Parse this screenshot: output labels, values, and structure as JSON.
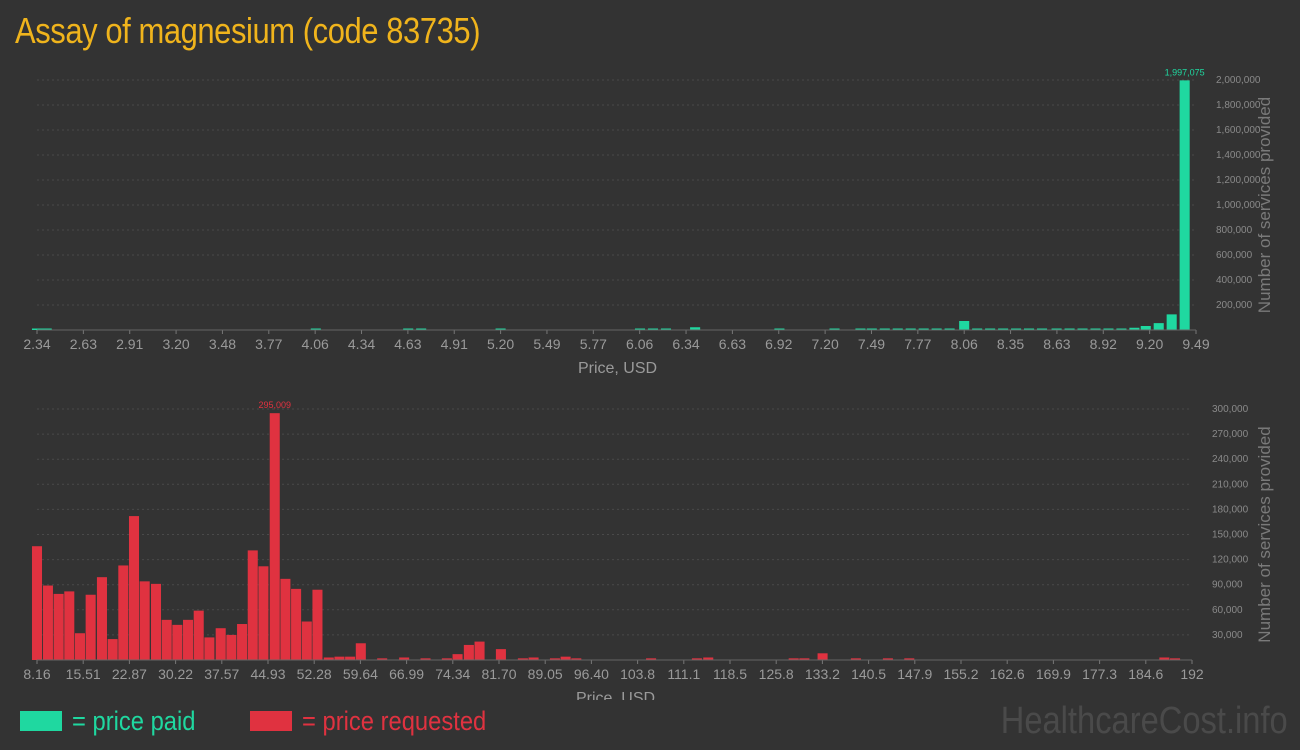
{
  "title": "Assay of magnesium (code 83735)",
  "legend": {
    "paid_label": "= price paid",
    "requested_label": "= price requested"
  },
  "watermark": "HealthcareCost.info",
  "colors": {
    "paid": "#1fd8a0",
    "requested": "#e03240",
    "title": "#f0b41c"
  },
  "chart_data": [
    {
      "type": "bar",
      "name": "price-paid",
      "xlabel": "Price, USD",
      "ylabel": "Number of services provided",
      "ylim": [
        0,
        2000000
      ],
      "yticks": [
        "200,000",
        "400,000",
        "600,000",
        "800,000",
        "1,000,000",
        "1,200,000",
        "1,400,000",
        "1,600,000",
        "1,800,000",
        "2,000,000"
      ],
      "ytick_values": [
        200000,
        400000,
        600000,
        800000,
        1000000,
        1200000,
        1400000,
        1600000,
        1800000,
        2000000
      ],
      "xticks": [
        "2.34",
        "2.63",
        "2.91",
        "3.20",
        "3.48",
        "3.77",
        "4.06",
        "4.34",
        "4.63",
        "4.91",
        "5.20",
        "5.49",
        "5.77",
        "6.06",
        "6.34",
        "6.63",
        "6.92",
        "7.20",
        "7.49",
        "7.77",
        "8.06",
        "8.35",
        "8.63",
        "8.92",
        "9.20",
        "9.49"
      ],
      "xrange": [
        2.34,
        9.49
      ],
      "grid": true,
      "peak_label": "1,997,075",
      "bars": [
        [
          2.34,
          8000
        ],
        [
          2.4,
          3000
        ],
        [
          4.06,
          5000
        ],
        [
          4.63,
          6000
        ],
        [
          4.71,
          5000
        ],
        [
          5.2,
          4000
        ],
        [
          6.06,
          3000
        ],
        [
          6.14,
          6000
        ],
        [
          6.22,
          4000
        ],
        [
          6.4,
          22000
        ],
        [
          6.92,
          4000
        ],
        [
          7.26,
          5000
        ],
        [
          7.42,
          4000
        ],
        [
          7.49,
          5000
        ],
        [
          7.57,
          4000
        ],
        [
          7.65,
          5000
        ],
        [
          7.73,
          4000
        ],
        [
          7.81,
          5000
        ],
        [
          7.89,
          4000
        ],
        [
          7.97,
          5000
        ],
        [
          8.06,
          72000
        ],
        [
          8.14,
          4000
        ],
        [
          8.22,
          5000
        ],
        [
          8.3,
          4000
        ],
        [
          8.38,
          5000
        ],
        [
          8.46,
          4000
        ],
        [
          8.54,
          5000
        ],
        [
          8.63,
          9000
        ],
        [
          8.71,
          5000
        ],
        [
          8.79,
          4000
        ],
        [
          8.87,
          5000
        ],
        [
          8.95,
          9000
        ],
        [
          9.03,
          12000
        ],
        [
          9.11,
          18000
        ],
        [
          9.18,
          32000
        ],
        [
          9.26,
          55000
        ],
        [
          9.34,
          125000
        ],
        [
          9.42,
          1997075
        ]
      ]
    },
    {
      "type": "bar",
      "name": "price-requested",
      "xlabel": "Price, USD",
      "ylabel": "Number of services provided",
      "ylim": [
        0,
        300000
      ],
      "yticks": [
        "30,000",
        "60,000",
        "90,000",
        "120,000",
        "150,000",
        "180,000",
        "210,000",
        "240,000",
        "270,000",
        "300,000"
      ],
      "ytick_values": [
        30000,
        60000,
        90000,
        120000,
        150000,
        180000,
        210000,
        240000,
        270000,
        300000
      ],
      "xticks": [
        "8.16",
        "15.51",
        "22.87",
        "30.22",
        "37.57",
        "44.93",
        "52.28",
        "59.64",
        "66.99",
        "74.34",
        "81.70",
        "89.05",
        "96.40",
        "103.8",
        "111.1",
        "118.5",
        "125.8",
        "133.2",
        "140.5",
        "147.9",
        "155.2",
        "162.6",
        "169.9",
        "177.3",
        "184.6",
        "192"
      ],
      "xrange": [
        8.16,
        192
      ],
      "grid": true,
      "peak_label": "295,009",
      "bars": [
        [
          8.16,
          136000
        ],
        [
          9.9,
          89000
        ],
        [
          11.6,
          79000
        ],
        [
          13.3,
          82000
        ],
        [
          15.0,
          32000
        ],
        [
          16.7,
          78000
        ],
        [
          18.5,
          99000
        ],
        [
          20.2,
          25000
        ],
        [
          21.9,
          113000
        ],
        [
          23.6,
          172000
        ],
        [
          25.3,
          94000
        ],
        [
          27.1,
          91000
        ],
        [
          28.8,
          48000
        ],
        [
          30.5,
          42000
        ],
        [
          32.2,
          48000
        ],
        [
          33.9,
          59000
        ],
        [
          35.6,
          27000
        ],
        [
          37.4,
          38000
        ],
        [
          39.1,
          30000
        ],
        [
          40.8,
          43000
        ],
        [
          42.5,
          131000
        ],
        [
          44.2,
          112000
        ],
        [
          46.0,
          295009
        ],
        [
          47.7,
          97000
        ],
        [
          49.4,
          85000
        ],
        [
          51.1,
          46000
        ],
        [
          52.8,
          84000
        ],
        [
          54.6,
          3000
        ],
        [
          56.3,
          4000
        ],
        [
          58.0,
          4000
        ],
        [
          59.7,
          20000
        ],
        [
          63.1,
          2000
        ],
        [
          66.6,
          3000
        ],
        [
          70.0,
          2000
        ],
        [
          73.4,
          2000
        ],
        [
          75.1,
          7000
        ],
        [
          76.9,
          18000
        ],
        [
          78.6,
          22000
        ],
        [
          82.0,
          13000
        ],
        [
          85.5,
          2000
        ],
        [
          87.2,
          3000
        ],
        [
          90.6,
          2000
        ],
        [
          92.3,
          4000
        ],
        [
          94.0,
          2000
        ],
        [
          105.9,
          2000
        ],
        [
          113.2,
          2000
        ],
        [
          115.0,
          3000
        ],
        [
          128.6,
          2000
        ],
        [
          130.3,
          2000
        ],
        [
          133.2,
          8000
        ],
        [
          138.5,
          2000
        ],
        [
          143.6,
          2000
        ],
        [
          147.0,
          2000
        ],
        [
          187.6,
          3000
        ],
        [
          189.3,
          2000
        ]
      ]
    }
  ]
}
